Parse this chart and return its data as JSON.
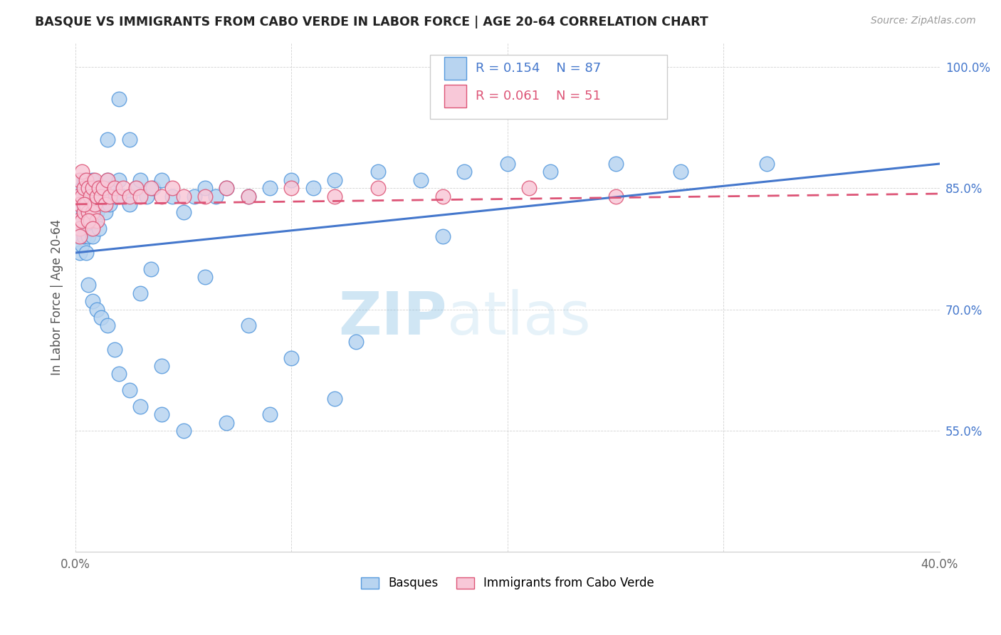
{
  "title": "BASQUE VS IMMIGRANTS FROM CABO VERDE IN LABOR FORCE | AGE 20-64 CORRELATION CHART",
  "source": "Source: ZipAtlas.com",
  "ylabel": "In Labor Force | Age 20-64",
  "xmin": 0.0,
  "xmax": 0.4,
  "ymin": 0.4,
  "ymax": 1.03,
  "yticks": [
    0.55,
    0.7,
    0.85,
    1.0
  ],
  "ytick_labels": [
    "55.0%",
    "70.0%",
    "85.0%",
    "100.0%"
  ],
  "xticks": [
    0.0,
    0.1,
    0.2,
    0.3,
    0.4
  ],
  "xtick_labels": [
    "0.0%",
    "",
    "",
    "",
    "40.0%"
  ],
  "r_basque": 0.154,
  "n_basque": 87,
  "r_cabo_verde": 0.061,
  "n_cabo_verde": 51,
  "color_basque_fill": "#b8d4f0",
  "color_basque_edge": "#5599dd",
  "color_cabo_fill": "#f8c8d8",
  "color_cabo_edge": "#dd5577",
  "color_basque_line": "#4477cc",
  "color_cabo_line": "#dd5577",
  "color_text_blue": "#4477cc",
  "watermark_color": "#c8dff0",
  "basque_x": [
    0.001,
    0.001,
    0.002,
    0.002,
    0.002,
    0.003,
    0.003,
    0.003,
    0.004,
    0.004,
    0.004,
    0.005,
    0.005,
    0.005,
    0.006,
    0.006,
    0.006,
    0.007,
    0.007,
    0.008,
    0.008,
    0.008,
    0.009,
    0.009,
    0.01,
    0.01,
    0.011,
    0.011,
    0.012,
    0.013,
    0.014,
    0.015,
    0.016,
    0.017,
    0.018,
    0.02,
    0.022,
    0.025,
    0.028,
    0.03,
    0.033,
    0.036,
    0.04,
    0.045,
    0.05,
    0.055,
    0.06,
    0.065,
    0.07,
    0.08,
    0.09,
    0.1,
    0.11,
    0.12,
    0.14,
    0.16,
    0.18,
    0.2,
    0.22,
    0.25,
    0.28,
    0.32,
    0.015,
    0.02,
    0.025,
    0.03,
    0.035,
    0.04,
    0.06,
    0.08,
    0.1,
    0.13,
    0.17,
    0.006,
    0.008,
    0.01,
    0.012,
    0.015,
    0.018,
    0.02,
    0.025,
    0.03,
    0.04,
    0.05,
    0.07,
    0.09,
    0.12
  ],
  "basque_y": [
    0.82,
    0.79,
    0.84,
    0.8,
    0.77,
    0.85,
    0.81,
    0.78,
    0.86,
    0.82,
    0.79,
    0.84,
    0.81,
    0.77,
    0.85,
    0.82,
    0.79,
    0.83,
    0.8,
    0.86,
    0.83,
    0.79,
    0.84,
    0.81,
    0.85,
    0.82,
    0.84,
    0.8,
    0.83,
    0.85,
    0.82,
    0.86,
    0.83,
    0.85,
    0.84,
    0.86,
    0.84,
    0.83,
    0.85,
    0.86,
    0.84,
    0.85,
    0.86,
    0.84,
    0.82,
    0.84,
    0.85,
    0.84,
    0.85,
    0.84,
    0.85,
    0.86,
    0.85,
    0.86,
    0.87,
    0.86,
    0.87,
    0.88,
    0.87,
    0.88,
    0.87,
    0.88,
    0.91,
    0.96,
    0.91,
    0.72,
    0.75,
    0.63,
    0.74,
    0.68,
    0.64,
    0.66,
    0.79,
    0.73,
    0.71,
    0.7,
    0.69,
    0.68,
    0.65,
    0.62,
    0.6,
    0.58,
    0.57,
    0.55,
    0.56,
    0.57,
    0.59
  ],
  "cabo_verde_x": [
    0.001,
    0.001,
    0.002,
    0.002,
    0.002,
    0.003,
    0.003,
    0.003,
    0.004,
    0.004,
    0.005,
    0.005,
    0.006,
    0.006,
    0.007,
    0.007,
    0.008,
    0.008,
    0.009,
    0.009,
    0.01,
    0.01,
    0.011,
    0.012,
    0.013,
    0.014,
    0.015,
    0.016,
    0.018,
    0.02,
    0.022,
    0.025,
    0.028,
    0.03,
    0.035,
    0.04,
    0.045,
    0.05,
    0.06,
    0.07,
    0.08,
    0.1,
    0.12,
    0.14,
    0.17,
    0.21,
    0.25,
    0.002,
    0.004,
    0.006,
    0.008
  ],
  "cabo_verde_y": [
    0.84,
    0.81,
    0.86,
    0.83,
    0.8,
    0.87,
    0.84,
    0.81,
    0.85,
    0.82,
    0.86,
    0.83,
    0.85,
    0.82,
    0.84,
    0.81,
    0.85,
    0.82,
    0.86,
    0.83,
    0.84,
    0.81,
    0.85,
    0.84,
    0.85,
    0.83,
    0.86,
    0.84,
    0.85,
    0.84,
    0.85,
    0.84,
    0.85,
    0.84,
    0.85,
    0.84,
    0.85,
    0.84,
    0.84,
    0.85,
    0.84,
    0.85,
    0.84,
    0.85,
    0.84,
    0.85,
    0.84,
    0.79,
    0.83,
    0.81,
    0.8
  ],
  "basque_line_x0": 0.0,
  "basque_line_y0": 0.77,
  "basque_line_x1": 0.4,
  "basque_line_y1": 0.88,
  "cabo_line_x0": 0.0,
  "cabo_line_y0": 0.83,
  "cabo_line_x1": 0.4,
  "cabo_line_y1": 0.843
}
